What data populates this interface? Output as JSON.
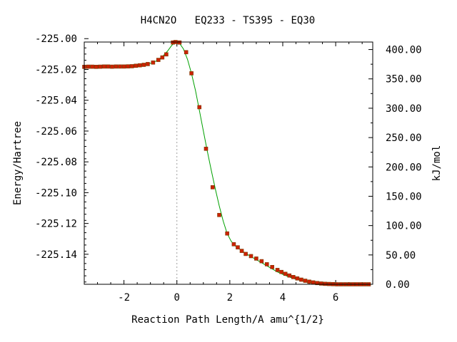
{
  "chart_data": {
    "type": "line",
    "title": "H4CN2O   EQ233 - TS395 - EQ30",
    "xlabel": "Reaction Path Length/A amu^{1/2}",
    "ylabel": "Energy/Hartree",
    "y2label": "kJ/mol",
    "xlim": [
      -3.5,
      7.4
    ],
    "ylim": [
      -225.1595,
      -225.0022
    ],
    "y2lim": [
      0.0,
      412.8
    ],
    "x_ticks": [
      -2,
      0,
      2,
      4,
      6
    ],
    "x_tick_labels": [
      "-2",
      "0",
      "2",
      "4",
      "6"
    ],
    "y_ticks": [
      -225.0,
      -225.02,
      -225.04,
      -225.06,
      -225.08,
      -225.1,
      -225.12,
      -225.14
    ],
    "y_tick_labels": [
      "-225.00",
      "-225.02",
      "-225.04",
      "-225.06",
      "-225.08",
      "-225.10",
      "-225.12",
      "-225.14"
    ],
    "y2_ticks": [
      0,
      50,
      100,
      150,
      200,
      250,
      300,
      350,
      400
    ],
    "y2_tick_labels": [
      "0.00",
      "50.00",
      "100.00",
      "150.00",
      "200.00",
      "250.00",
      "300.00",
      "350.00",
      "400.00"
    ],
    "ts_line_x": 0,
    "grid": false,
    "series": [
      {
        "style": "line",
        "color": "#00a000",
        "x": [
          -3.5,
          -3.2,
          -2.9,
          -2.6,
          -2.3,
          -2.0,
          -1.7,
          -1.4,
          -1.1,
          -0.9,
          -0.7,
          -0.5,
          -0.35,
          -0.2,
          -0.1,
          0.0,
          0.1,
          0.25,
          0.4,
          0.55,
          0.7,
          0.85,
          1.0,
          1.15,
          1.3,
          1.45,
          1.6,
          1.75,
          1.9,
          2.05,
          2.2,
          2.4,
          2.6,
          2.8,
          3.0,
          3.2,
          3.4,
          3.6,
          3.8,
          4.0,
          4.2,
          4.4,
          4.6,
          4.8,
          5.0,
          5.2,
          5.5,
          5.8,
          6.1,
          6.4,
          6.7,
          7.0,
          7.3
        ],
        "y": [
          -225.0183,
          -225.0182,
          -225.0182,
          -225.0181,
          -225.0181,
          -225.0181,
          -225.0179,
          -225.0174,
          -225.0165,
          -225.0155,
          -225.0138,
          -225.0108,
          -225.008,
          -225.0045,
          -225.0028,
          -225.0022,
          -225.003,
          -225.0068,
          -225.0135,
          -225.0225,
          -225.0335,
          -225.0465,
          -225.06,
          -225.073,
          -225.0855,
          -225.0975,
          -225.1085,
          -225.1185,
          -225.1265,
          -225.1315,
          -225.1345,
          -225.137,
          -225.1395,
          -225.1415,
          -225.1435,
          -225.1455,
          -225.1475,
          -225.1495,
          -225.1515,
          -225.153,
          -225.1545,
          -225.1557,
          -225.1567,
          -225.1575,
          -225.1582,
          -225.1587,
          -225.1591,
          -225.1593,
          -225.1594,
          -225.1595,
          -225.1595,
          -225.1595,
          -225.1595
        ]
      },
      {
        "style": "markers",
        "color": "#cc2200",
        "x": [
          -3.5,
          -3.35,
          -3.2,
          -3.05,
          -2.9,
          -2.75,
          -2.6,
          -2.45,
          -2.3,
          -2.15,
          -2.0,
          -1.85,
          -1.7,
          -1.55,
          -1.4,
          -1.25,
          -1.1,
          -0.9,
          -0.7,
          -0.55,
          -0.4,
          -0.15,
          -0.05,
          0.1,
          0.35,
          0.55,
          0.85,
          1.1,
          1.35,
          1.6,
          1.9,
          2.15,
          2.3,
          2.45,
          2.6,
          2.8,
          3.0,
          3.2,
          3.4,
          3.6,
          3.8,
          3.95,
          4.1,
          4.25,
          4.4,
          4.55,
          4.7,
          4.85,
          5.0,
          5.15,
          5.3,
          5.45,
          5.6,
          5.75,
          5.9,
          6.05,
          6.2,
          6.35,
          6.5,
          6.65,
          6.8,
          6.95,
          7.1,
          7.25
        ],
        "y": [
          -225.0183,
          -225.0182,
          -225.0182,
          -225.0183,
          -225.0182,
          -225.0181,
          -225.0181,
          -225.0182,
          -225.0181,
          -225.0181,
          -225.0181,
          -225.018,
          -225.0179,
          -225.0176,
          -225.0173,
          -225.017,
          -225.0165,
          -225.0155,
          -225.0138,
          -225.0122,
          -225.0102,
          -225.0025,
          -225.0022,
          -225.0025,
          -225.0088,
          -225.0225,
          -225.0445,
          -225.0715,
          -225.0965,
          -225.1145,
          -225.1265,
          -225.1335,
          -225.1355,
          -225.1378,
          -225.1398,
          -225.1412,
          -225.1428,
          -225.1445,
          -225.1465,
          -225.1483,
          -225.1502,
          -225.1515,
          -225.1527,
          -225.1538,
          -225.1548,
          -225.1557,
          -225.1565,
          -225.1572,
          -225.1578,
          -225.1583,
          -225.1587,
          -225.159,
          -225.1592,
          -225.1593,
          -225.1594,
          -225.1595,
          -225.1595,
          -225.1595,
          -225.1595,
          -225.1595,
          -225.1595,
          -225.1595,
          -225.1595,
          -225.1595
        ]
      }
    ]
  }
}
